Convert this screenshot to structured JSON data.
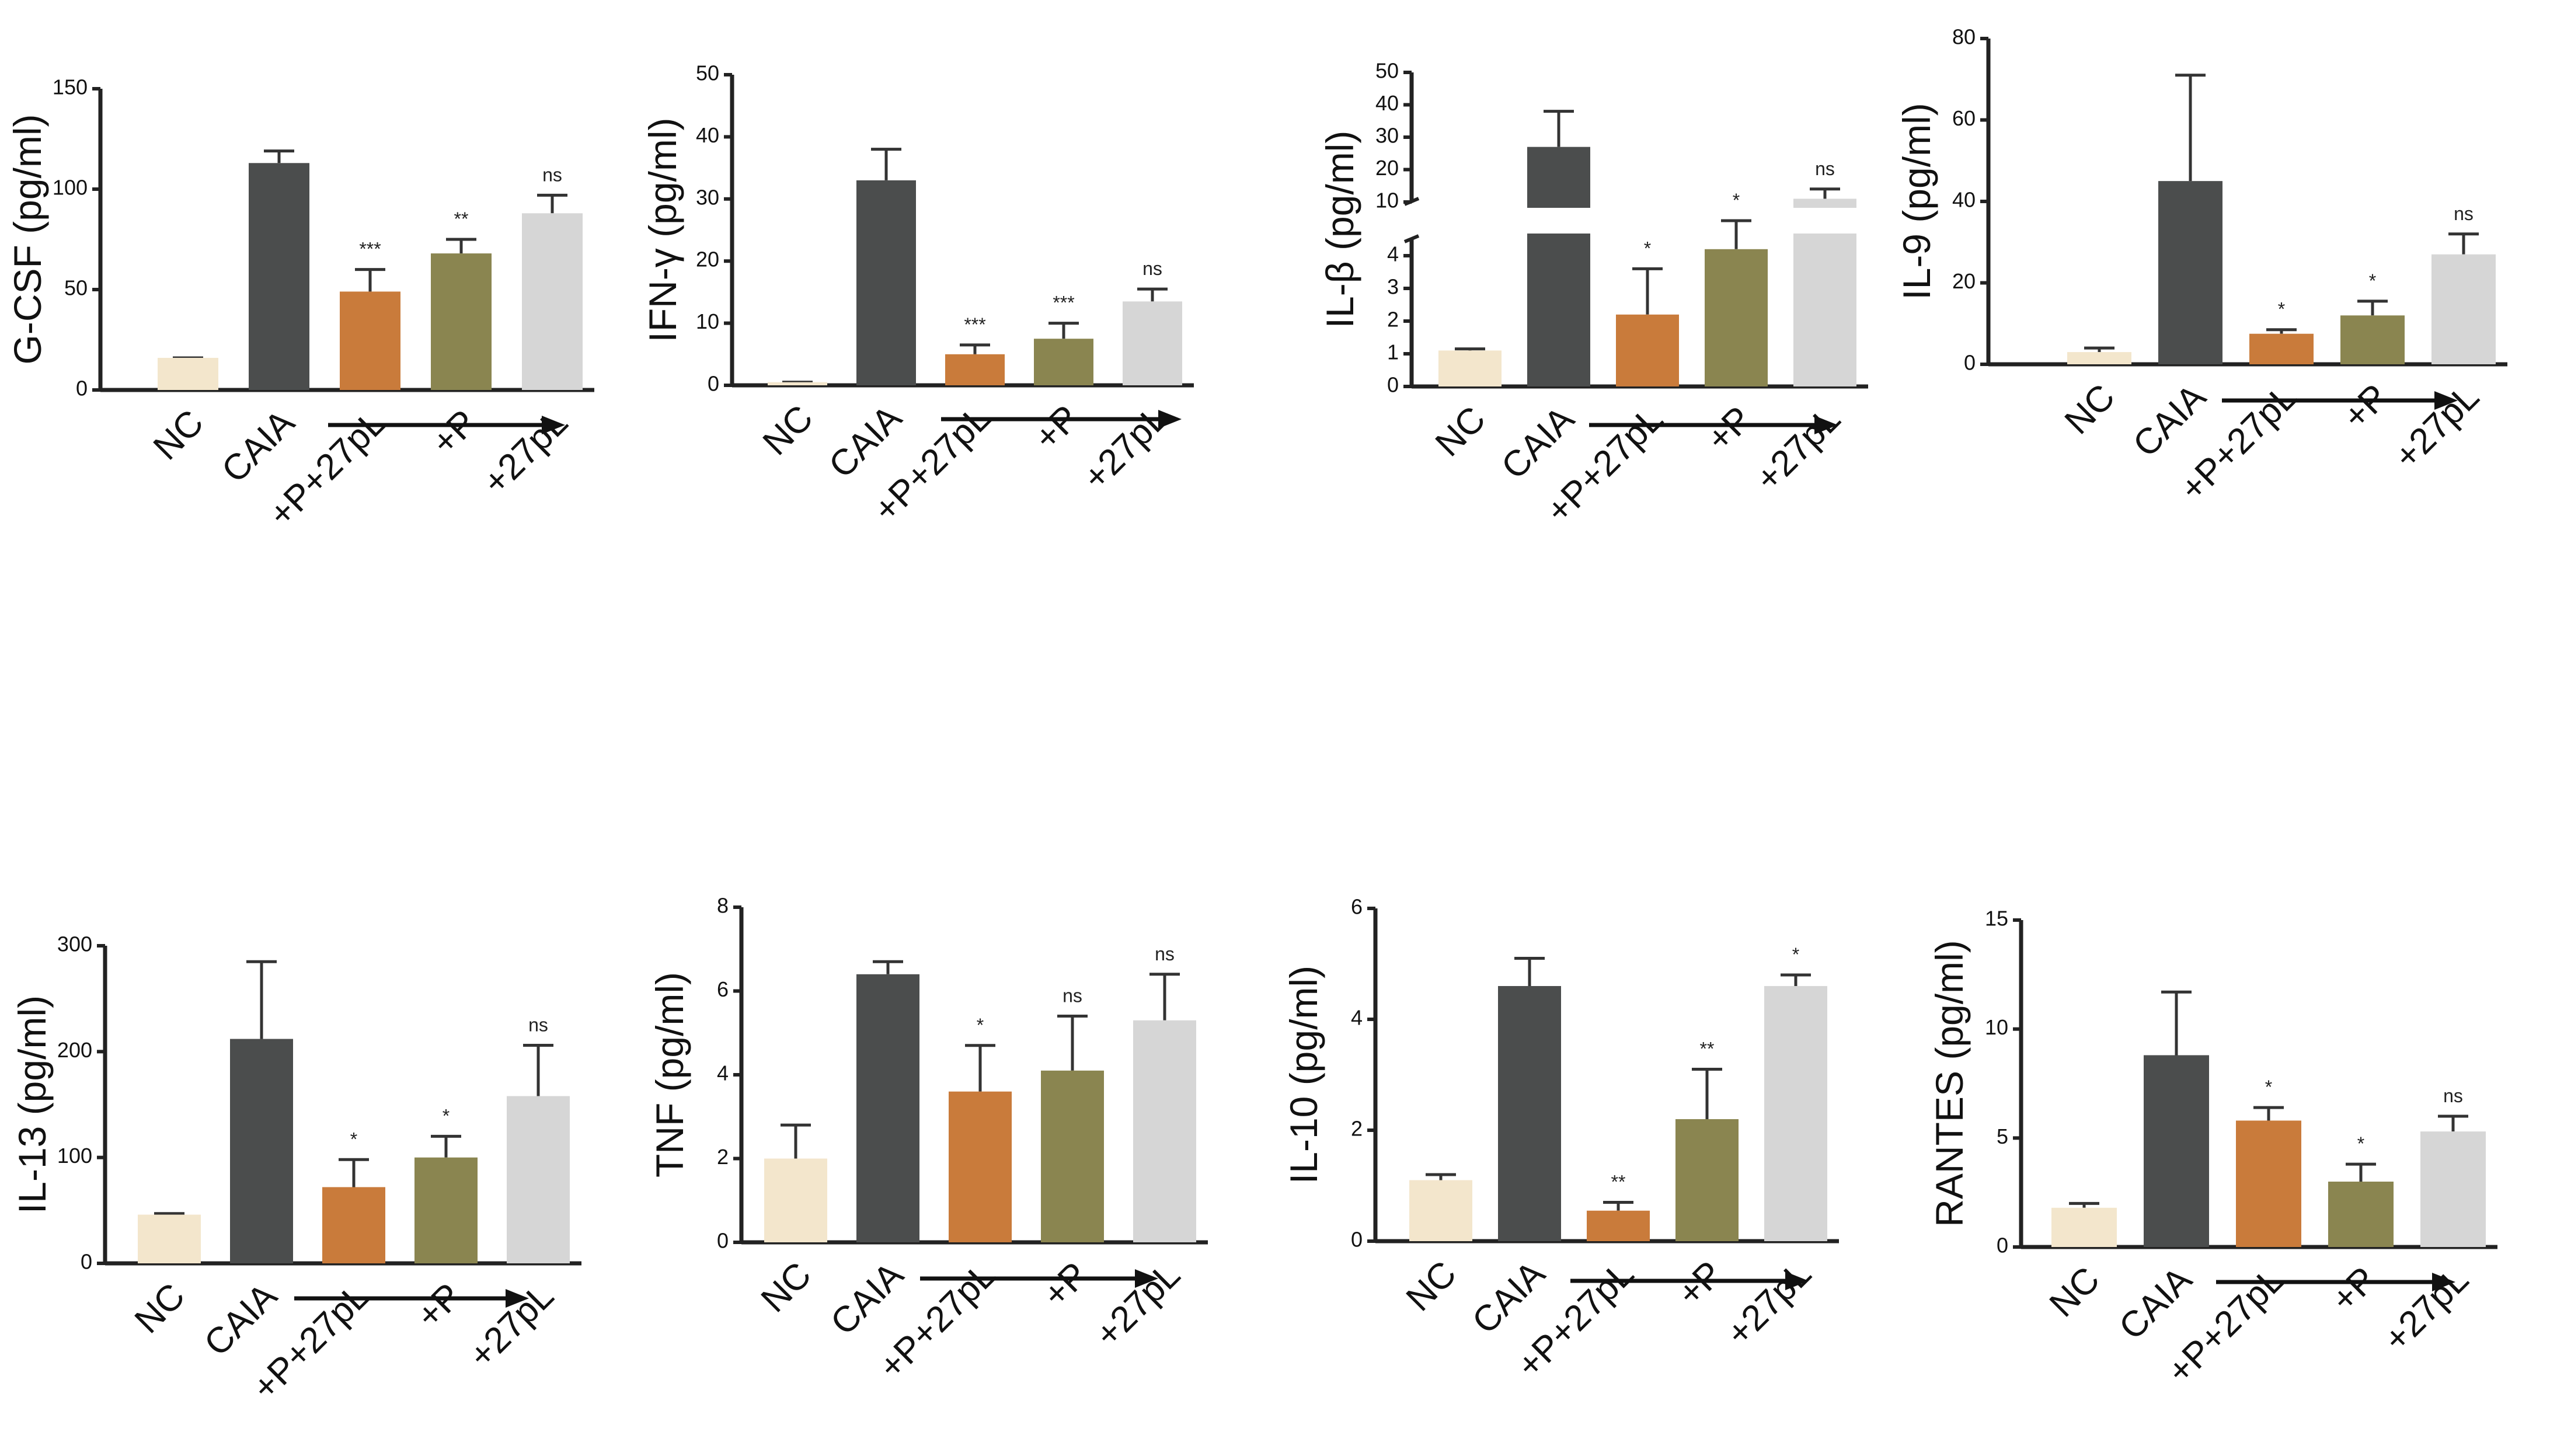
{
  "colors": {
    "NC": "#f3e6cc",
    "CAIA": "#4b4d4d",
    "+P+27pL": "#c97b3b",
    "+P": "#8a8550",
    "+27pL": "#d6d6d6"
  },
  "chart_data": [
    {
      "type": "bar",
      "ylabel": "G-CSF (pg/ml)",
      "categories": [
        "NC",
        "CAIA",
        "+P+27pL",
        "+P",
        "+27pL"
      ],
      "values": [
        16,
        113,
        49,
        68,
        88
      ],
      "errors": [
        0,
        6,
        11,
        7,
        9
      ],
      "significance": [
        "",
        "",
        "***",
        "**",
        "ns"
      ],
      "ylim": [
        0,
        150
      ],
      "yticks": [
        0,
        50,
        100,
        150
      ],
      "arrow": true
    },
    {
      "type": "bar",
      "ylabel": "IFN-γ (pg/ml)",
      "categories": [
        "NC",
        "CAIA",
        "+P+27pL",
        "+P",
        "+27pL"
      ],
      "values": [
        0.5,
        33,
        5,
        7.5,
        13.5
      ],
      "errors": [
        0,
        5,
        1.5,
        2.5,
        2
      ],
      "significance": [
        "",
        "",
        "***",
        "***",
        "ns"
      ],
      "ylim": [
        0,
        50
      ],
      "yticks": [
        0,
        10,
        20,
        30,
        40,
        50
      ],
      "arrow": true
    },
    {
      "type": "bar",
      "ylabel": "IL-β (pg/ml)",
      "categories": [
        "NC",
        "CAIA",
        "+P+27pL",
        "+P",
        "+27pL"
      ],
      "values": [
        1.1,
        27,
        2.2,
        4.2,
        11
      ],
      "errors": [
        0.05,
        11,
        1.4,
        3,
        3
      ],
      "significance": [
        "",
        "",
        "*",
        "*",
        "ns"
      ],
      "broken_axis": {
        "lower": [
          0,
          4.5
        ],
        "upper": [
          10,
          50
        ]
      },
      "yticks_lower": [
        0,
        1,
        2,
        3,
        4
      ],
      "yticks_upper": [
        10,
        20,
        30,
        40,
        50
      ],
      "arrow": true
    },
    {
      "type": "bar",
      "ylabel": "IL-9 (pg/ml)",
      "categories": [
        "NC",
        "CAIA",
        "+P+27pL",
        "+P",
        "+27pL"
      ],
      "values": [
        3,
        45,
        7.5,
        12,
        27
      ],
      "errors": [
        1,
        26,
        1,
        3.5,
        5
      ],
      "significance": [
        "",
        "",
        "*",
        "*",
        "ns"
      ],
      "ylim": [
        0,
        80
      ],
      "yticks": [
        0,
        20,
        40,
        60,
        80
      ],
      "arrow": true
    },
    {
      "type": "bar",
      "ylabel": "IL-13 (pg/ml)",
      "categories": [
        "NC",
        "CAIA",
        "+P+27pL",
        "+P",
        "+27pL"
      ],
      "values": [
        46,
        212,
        72,
        100,
        158
      ],
      "errors": [
        1,
        73,
        26,
        20,
        48
      ],
      "significance": [
        "",
        "",
        "*",
        "*",
        "ns"
      ],
      "ylim": [
        0,
        300
      ],
      "yticks": [
        0,
        100,
        200,
        300
      ],
      "arrow": true
    },
    {
      "type": "bar",
      "ylabel": "TNF (pg/ml)",
      "categories": [
        "NC",
        "CAIA",
        "+P+27pL",
        "+P",
        "+27pL"
      ],
      "values": [
        2.0,
        6.4,
        3.6,
        4.1,
        5.3
      ],
      "errors": [
        0.8,
        0.3,
        1.1,
        1.3,
        1.1
      ],
      "significance": [
        "",
        "",
        "*",
        "ns",
        "ns"
      ],
      "ylim": [
        0,
        8
      ],
      "yticks": [
        0,
        2,
        4,
        6,
        8
      ],
      "arrow": true
    },
    {
      "type": "bar",
      "ylabel": "IL-10 (pg/ml)",
      "categories": [
        "NC",
        "CAIA",
        "+P+27pL",
        "+P",
        "+27pL"
      ],
      "values": [
        1.1,
        4.6,
        0.55,
        2.2,
        4.6
      ],
      "errors": [
        0.1,
        0.5,
        0.15,
        0.9,
        0.2
      ],
      "significance": [
        "",
        "",
        "**",
        "**",
        "*"
      ],
      "ylim": [
        0,
        6
      ],
      "yticks": [
        0,
        2,
        4,
        6
      ],
      "arrow": true
    },
    {
      "type": "bar",
      "ylabel": "RANTES (pg/ml)",
      "categories": [
        "NC",
        "CAIA",
        "+P+27pL",
        "+P",
        "+27pL"
      ],
      "values": [
        1.8,
        8.8,
        5.8,
        3.0,
        5.3
      ],
      "errors": [
        0.2,
        2.9,
        0.6,
        0.8,
        0.7
      ],
      "significance": [
        "",
        "",
        "*",
        "*",
        "ns"
      ],
      "ylim": [
        0,
        15
      ],
      "yticks": [
        0,
        5,
        10,
        15
      ],
      "arrow": true
    }
  ]
}
